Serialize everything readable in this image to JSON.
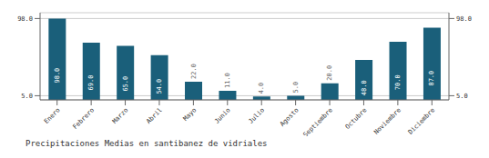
{
  "chart_data": {
    "type": "bar",
    "title": "Precipitaciones Medias en santibanez de vidriales",
    "categories": [
      "Enero",
      "Febrero",
      "Marzo",
      "Abril",
      "Mayo",
      "Junio",
      "Julio",
      "Agosto",
      "Septiembre",
      "Octubre",
      "Noviembre",
      "Diciembre"
    ],
    "values": [
      98.0,
      69.0,
      65.0,
      54.0,
      22.0,
      11.0,
      4.0,
      5.0,
      20.0,
      48.0,
      70.0,
      87.0
    ],
    "value_labels": [
      "98.0",
      "69.0",
      "65.0",
      "54.0",
      "22.0",
      "11.0",
      "4.0",
      "5.0",
      "20.0",
      "48.0",
      "70.0",
      "87.0"
    ],
    "color": "#1a5f7a",
    "ylim": [
      0,
      105
    ],
    "yticks": [
      {
        "value": 5,
        "label": "5.0"
      },
      {
        "value": 98,
        "label": "98.0"
      }
    ],
    "grid": true,
    "data_labels": true
  }
}
